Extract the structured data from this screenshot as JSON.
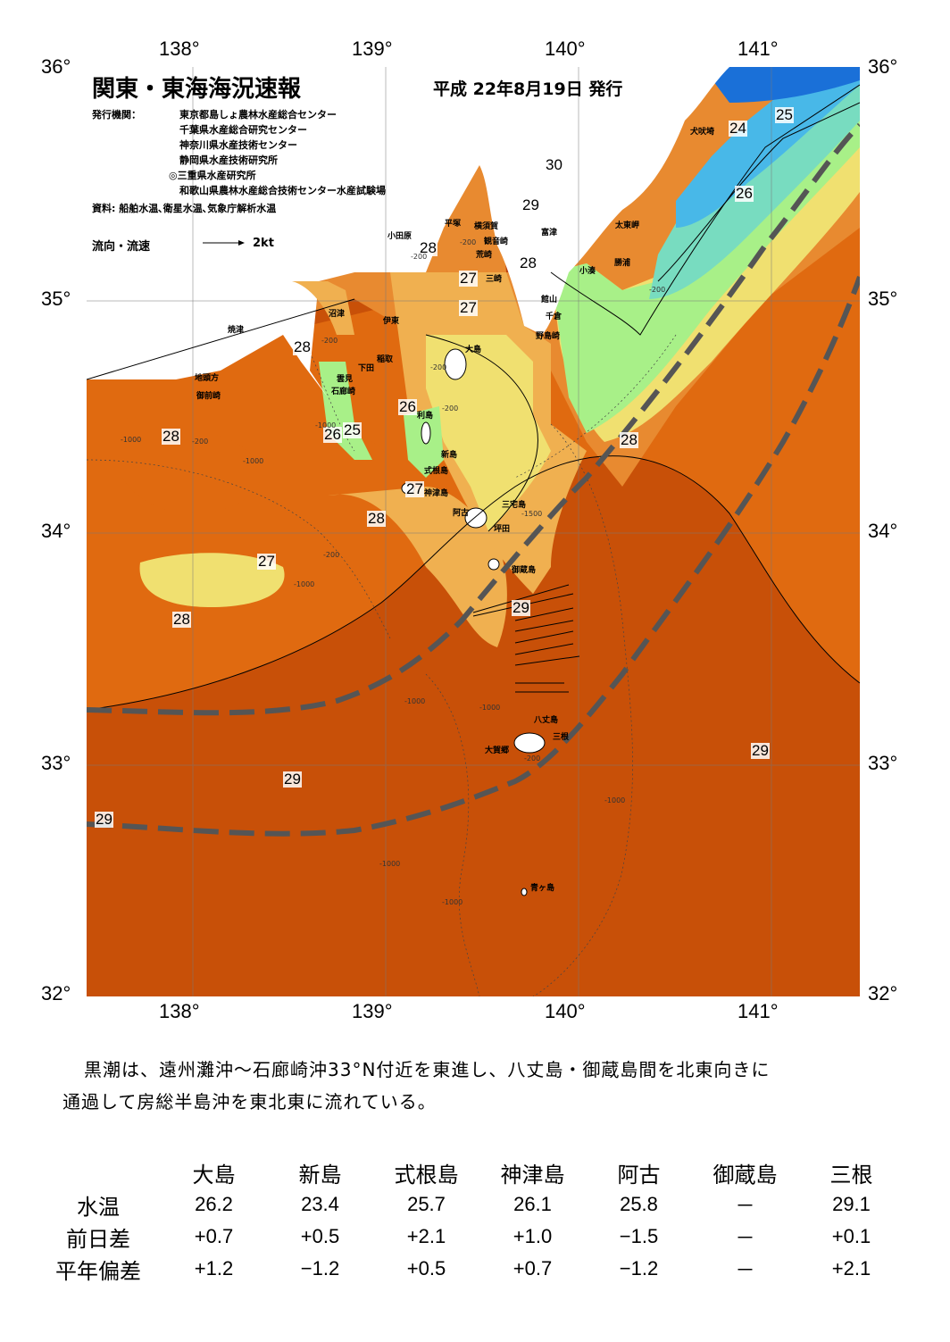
{
  "map": {
    "title": "関東・東海海況速報",
    "issue_date": "平成 22年8月19日 発行",
    "publishers_label": "発行機関：",
    "publishers": [
      "東京都島しょ農林水産総合センター",
      "千葉県水産総合研究センター",
      "神奈川県水産技術センター",
      "静岡県水産技術研究所",
      "◎三重県水産研究所",
      "和歌山県農林水産総合技術センター水産試験場"
    ],
    "sources": "資料: 船舶水温､衛星水温､気象庁解析水温",
    "legend_label": "流向・流速",
    "legend_scale": "2kt",
    "lon_ticks": [
      "138°",
      "139°",
      "140°",
      "141°"
    ],
    "lat_ticks": [
      "36°",
      "35°",
      "34°",
      "33°",
      "32°"
    ],
    "colors": {
      "t24": "#48b8e8",
      "t25": "#78dcc0",
      "t26": "#a8f088",
      "t27": "#f0e070",
      "t28": "#f0b050",
      "t28b": "#e88a30",
      "t29": "#e06a10",
      "t29b": "#c85008",
      "t30": "#b84010",
      "kuroshio_axis": "#555555",
      "land": "#ffffff"
    },
    "isotherm_labels": [
      {
        "text": "24"
      },
      {
        "text": "25"
      },
      {
        "text": "26"
      },
      {
        "text": "30"
      },
      {
        "text": "29"
      },
      {
        "text": "28"
      },
      {
        "text": "27"
      },
      {
        "text": "27"
      },
      {
        "text": "28"
      },
      {
        "text": "28"
      },
      {
        "text": "26"
      },
      {
        "text": "26"
      },
      {
        "text": "25"
      },
      {
        "text": "28"
      },
      {
        "text": "27"
      },
      {
        "text": "28"
      },
      {
        "text": "27"
      },
      {
        "text": "28"
      },
      {
        "text": "28"
      },
      {
        "text": "29"
      },
      {
        "text": "29"
      },
      {
        "text": "29"
      },
      {
        "text": "29"
      }
    ],
    "place_names": [
      "犬吠埼",
      "太東岬",
      "勝浦",
      "小湊",
      "館山",
      "千倉",
      "野島崎",
      "富津",
      "横須賀",
      "観音崎",
      "荒崎",
      "三崎",
      "平塚",
      "小田原",
      "沼津",
      "伊東",
      "稲取",
      "下田",
      "雲見",
      "石廊崎",
      "焼津",
      "地頭方",
      "御前崎",
      "大島",
      "利島",
      "新島",
      "式根島",
      "神津島",
      "阿古",
      "三宅島",
      "坪田",
      "御蔵島",
      "八丈島",
      "三根",
      "大賀郷",
      "青ヶ島"
    ],
    "depth_labels": [
      "-200",
      "-200",
      "-200",
      "-200",
      "-200",
      "-200",
      "-200",
      "-200",
      "-1000",
      "-1000",
      "-1000",
      "-1000",
      "-1000",
      "-1000",
      "-1000",
      "-1000",
      "-1000",
      "-1500",
      "-200"
    ]
  },
  "summary": {
    "line1": "黒潮は、遠州灘沖～石廊崎沖33°N付近を東進し、八丈島・御蔵島間を北東向きに",
    "line2": "通過して房総半島沖を東北東に流れている。"
  },
  "observations": {
    "columns": [
      "大島",
      "新島",
      "式根島",
      "神津島",
      "阿古",
      "御蔵島",
      "三根"
    ],
    "rows": [
      {
        "label": "水温",
        "values": [
          "26.2",
          "23.4",
          "25.7",
          "26.1",
          "25.8",
          "－",
          "29.1"
        ]
      },
      {
        "label": "前日差",
        "values": [
          "+0.7",
          "+0.5",
          "+2.1",
          "+1.0",
          "−1.5",
          "－",
          "+0.1"
        ]
      },
      {
        "label": "平年偏差",
        "values": [
          "+1.2",
          "−1.2",
          "+0.5",
          "+0.7",
          "−1.2",
          "－",
          "+2.1"
        ]
      }
    ]
  }
}
